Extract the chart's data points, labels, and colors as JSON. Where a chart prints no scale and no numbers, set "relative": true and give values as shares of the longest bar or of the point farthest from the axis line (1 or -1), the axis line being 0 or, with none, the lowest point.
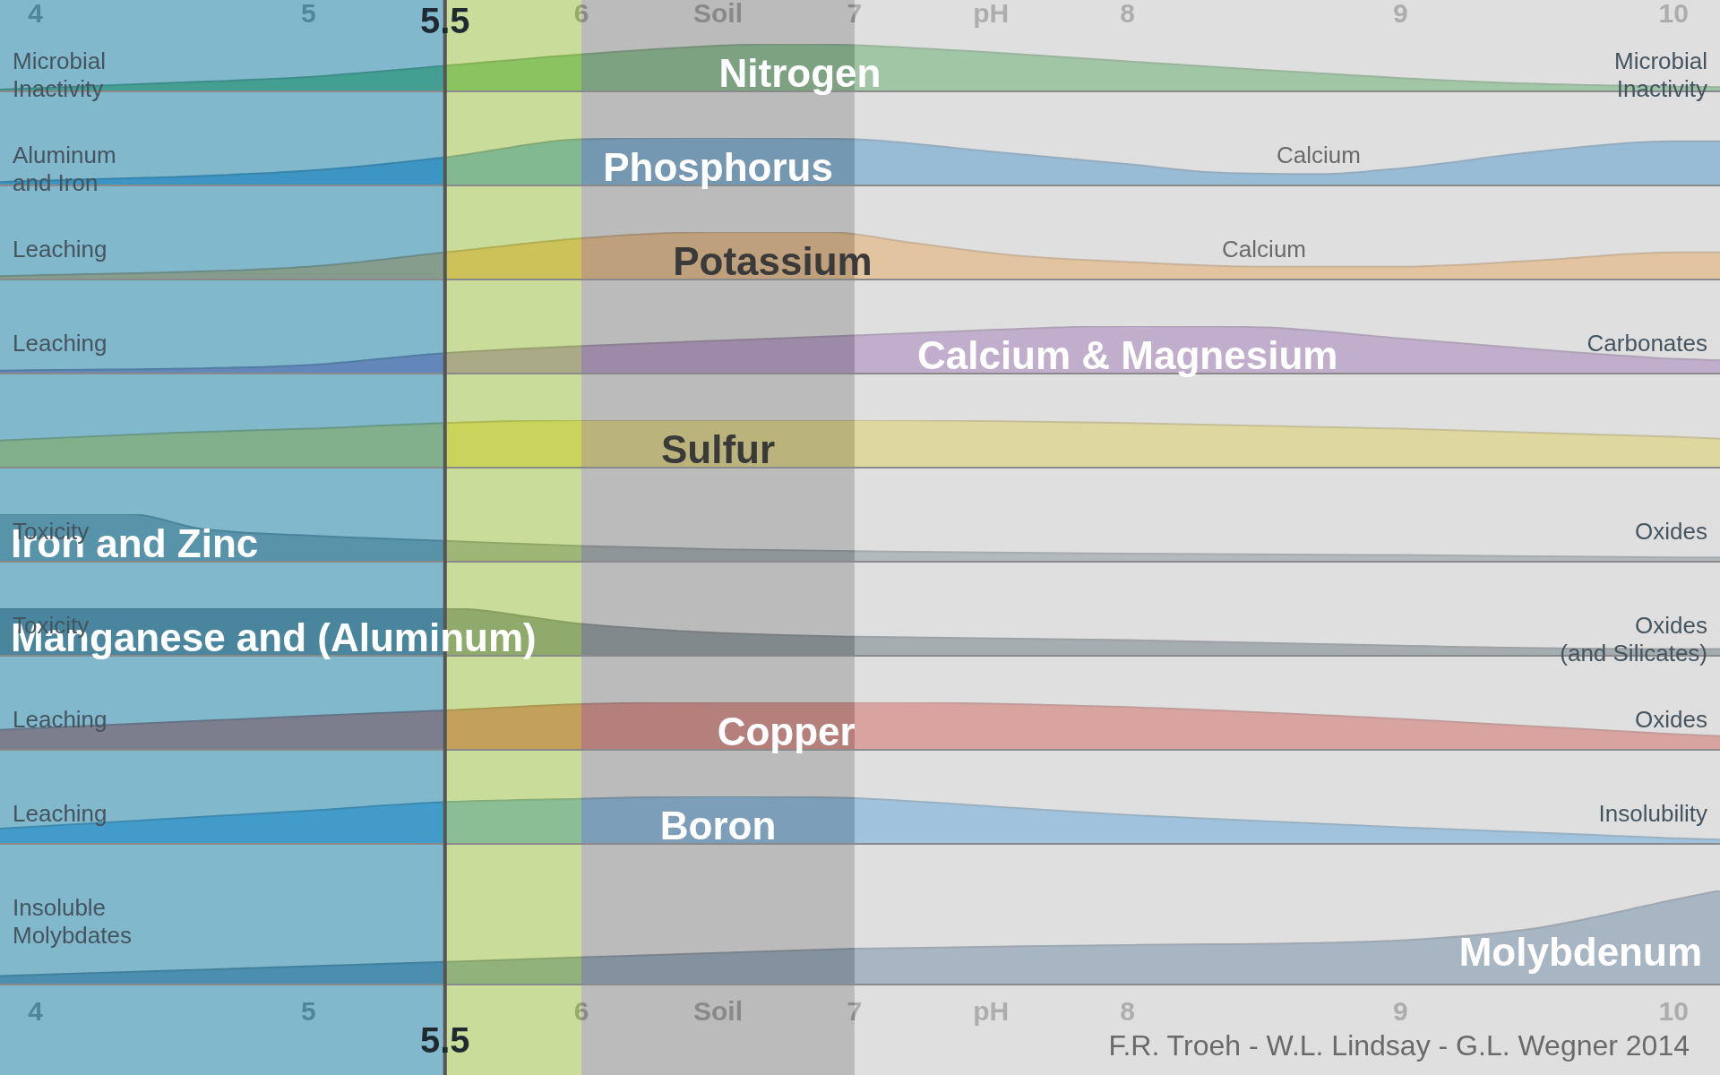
{
  "chart_data": [
    {
      "type": "area",
      "title": "Nitrogen",
      "relative": true,
      "color": "#3d9a4a",
      "x": [
        3.87,
        4.5,
        5,
        5.5,
        6,
        6.5,
        6.8,
        7,
        7.5,
        8,
        8.5,
        9,
        9.5,
        10,
        10.17
      ],
      "values": [
        0.04,
        0.18,
        0.3,
        0.54,
        0.78,
        0.96,
        1,
        0.97,
        0.82,
        0.63,
        0.45,
        0.28,
        0.16,
        0.1,
        0.09
      ],
      "xlim": [
        3.87,
        10.17
      ],
      "x2lim": [
        3.87,
        10.17
      ],
      "x2ticks": [
        4,
        5,
        6,
        {
          "value": 6.5,
          "label": "Soil"
        },
        7,
        {
          "value": 7.5,
          "label": "pH"
        },
        8,
        9,
        10
      ],
      "annotations": [
        "Microbial\nInactivity",
        "Microbial\nInactivity"
      ],
      "bands": [
        {
          "axis": "x",
          "from": 3.87,
          "to": 5.5,
          "color": "#4aa3c4"
        },
        {
          "axis": "x",
          "from": 5.5,
          "to": 6,
          "color": "#bfe070"
        },
        {
          "axis": "x",
          "from": 6,
          "to": 7,
          "color": "#a8a8a8"
        },
        {
          "axis": "x",
          "from": 7,
          "to": 10.17,
          "color": "#e4e4e4"
        }
      ],
      "ref_lines": [
        {
          "axis": "x",
          "value": 5.5,
          "label": "5.5",
          "color": "#555555"
        }
      ]
    },
    {
      "type": "area",
      "title": "Phosphorus",
      "relative": true,
      "color": "#2a7fc0",
      "x": [
        3.87,
        5,
        5.5,
        6,
        6.5,
        7,
        7.5,
        8,
        8.3,
        8.7,
        9,
        9.5,
        10,
        10.17
      ],
      "values": [
        0.07,
        0.31,
        0.59,
        0.97,
        1,
        0.97,
        0.71,
        0.45,
        0.28,
        0.24,
        0.36,
        0.71,
        0.93,
        0.93
      ],
      "xlim": [
        3.87,
        10.17
      ],
      "annotations": [
        "Aluminum\nand Iron",
        "Calcium"
      ],
      "bands": [
        {
          "axis": "x",
          "from": 3.87,
          "to": 5.5,
          "color": "#4aa3c4"
        },
        {
          "axis": "x",
          "from": 5.5,
          "to": 6,
          "color": "#bfe070"
        },
        {
          "axis": "x",
          "from": 6,
          "to": 7,
          "color": "#a8a8a8"
        },
        {
          "axis": "x",
          "from": 7,
          "to": 10.17,
          "color": "#e4e4e4"
        }
      ],
      "ref_lines": [
        {
          "axis": "x",
          "value": 5.5,
          "color": "#555555"
        }
      ]
    },
    {
      "type": "area",
      "title": "Potassium",
      "relative": true,
      "color": "#e0953a",
      "x": [
        3.87,
        5,
        5.5,
        6,
        6.5,
        6.9,
        7.2,
        7.6,
        8,
        8.5,
        9,
        9.5,
        10,
        10.17
      ],
      "values": [
        0.07,
        0.27,
        0.57,
        0.87,
        1,
        1,
        0.78,
        0.5,
        0.37,
        0.27,
        0.27,
        0.4,
        0.57,
        0.57
      ],
      "xlim": [
        3.87,
        10.17
      ],
      "annotations": [
        "Leaching",
        "Calcium"
      ],
      "bands": [
        {
          "axis": "x",
          "from": 3.87,
          "to": 5.5,
          "color": "#4aa3c4"
        },
        {
          "axis": "x",
          "from": 5.5,
          "to": 6,
          "color": "#bfe070"
        },
        {
          "axis": "x",
          "from": 6,
          "to": 7,
          "color": "#a8a8a8"
        },
        {
          "axis": "x",
          "from": 7,
          "to": 10.17,
          "color": "#e4e4e4"
        }
      ],
      "ref_lines": [
        {
          "axis": "x",
          "value": 5.5,
          "color": "#555555"
        }
      ]
    },
    {
      "type": "area",
      "title": "Calcium & Magnesium",
      "relative": true,
      "color": "#8a5ea8",
      "x": [
        3.87,
        5,
        5.5,
        6,
        7,
        7.5,
        8,
        8.5,
        9,
        9.5,
        10,
        10.17
      ],
      "values": [
        0.06,
        0.18,
        0.43,
        0.58,
        0.8,
        0.92,
        1,
        0.97,
        0.74,
        0.51,
        0.31,
        0.28
      ],
      "xlim": [
        3.87,
        10.17
      ],
      "annotations": [
        "Leaching",
        "Carbonates"
      ],
      "bands": [
        {
          "axis": "x",
          "from": 3.87,
          "to": 5.5,
          "color": "#4aa3c4"
        },
        {
          "axis": "x",
          "from": 5.5,
          "to": 6,
          "color": "#bfe070"
        },
        {
          "axis": "x",
          "from": 6,
          "to": 7,
          "color": "#a8a8a8"
        },
        {
          "axis": "x",
          "from": 7,
          "to": 10.17,
          "color": "#e4e4e4"
        }
      ],
      "ref_lines": [
        {
          "axis": "x",
          "value": 5.5,
          "color": "#555555"
        }
      ]
    },
    {
      "type": "area",
      "title": "Sulfur",
      "relative": true,
      "color": "#d6c23a",
      "x": [
        3.87,
        4.5,
        5,
        5.5,
        6,
        7,
        8,
        9,
        10,
        10.17
      ],
      "values": [
        0.57,
        0.73,
        0.82,
        0.94,
        1,
        1,
        0.94,
        0.82,
        0.65,
        0.61
      ],
      "xlim": [
        3.87,
        10.17
      ],
      "bands": [
        {
          "axis": "x",
          "from": 3.87,
          "to": 5.5,
          "color": "#4aa3c4"
        },
        {
          "axis": "x",
          "from": 5.5,
          "to": 6,
          "color": "#bfe070"
        },
        {
          "axis": "x",
          "from": 6,
          "to": 7,
          "color": "#a8a8a8"
        },
        {
          "axis": "x",
          "from": 7,
          "to": 10.17,
          "color": "#e4e4e4"
        }
      ],
      "ref_lines": [
        {
          "axis": "x",
          "value": 5.5,
          "color": "#555555"
        }
      ]
    },
    {
      "type": "area",
      "title": "Iron and Zinc",
      "relative": true,
      "color": "#6d7a80",
      "x": [
        3.87,
        4.35,
        4.6,
        5,
        5.5,
        6,
        6.5,
        7,
        8,
        9,
        10,
        10.17
      ],
      "values": [
        1,
        1,
        0.7,
        0.55,
        0.44,
        0.33,
        0.26,
        0.22,
        0.17,
        0.14,
        0.09,
        0.09
      ],
      "xlim": [
        3.87,
        10.17
      ],
      "annotations": [
        "Toxicity",
        "Oxides"
      ],
      "bands": [
        {
          "axis": "x",
          "from": 3.87,
          "to": 5.5,
          "color": "#4aa3c4"
        },
        {
          "axis": "x",
          "from": 5.5,
          "to": 6,
          "color": "#bfe070"
        },
        {
          "axis": "x",
          "from": 6,
          "to": 7,
          "color": "#a8a8a8"
        },
        {
          "axis": "x",
          "from": 7,
          "to": 10.17,
          "color": "#e4e4e4"
        }
      ],
      "ref_lines": [
        {
          "axis": "x",
          "value": 5.5,
          "color": "#555555"
        }
      ]
    },
    {
      "type": "area",
      "title": "Manganese and (Aluminum)",
      "relative": true,
      "color": "#4a5a64",
      "x": [
        3.87,
        5.5,
        6,
        6.5,
        7,
        8,
        9,
        10,
        10.17
      ],
      "values": [
        1,
        1,
        0.67,
        0.48,
        0.4,
        0.33,
        0.21,
        0.14,
        0.14
      ],
      "xlim": [
        3.87,
        10.17
      ],
      "annotations": [
        "Toxicity",
        "Oxides\n(and Silicates)"
      ],
      "bands": [
        {
          "axis": "x",
          "from": 3.87,
          "to": 5.5,
          "color": "#4aa3c4"
        },
        {
          "axis": "x",
          "from": 5.5,
          "to": 6,
          "color": "#bfe070"
        },
        {
          "axis": "x",
          "from": 6,
          "to": 7,
          "color": "#a8a8a8"
        },
        {
          "axis": "x",
          "from": 7,
          "to": 10.17,
          "color": "#e4e4e4"
        }
      ],
      "ref_lines": [
        {
          "axis": "x",
          "value": 5.5,
          "color": "#555555"
        }
      ]
    },
    {
      "type": "area",
      "title": "Copper",
      "relative": true,
      "color": "#c8453a",
      "x": [
        3.87,
        5,
        5.5,
        6,
        6.5,
        7,
        8,
        9,
        10,
        10.17
      ],
      "values": [
        0.42,
        0.71,
        0.83,
        0.96,
        1,
        1,
        0.9,
        0.65,
        0.33,
        0.29
      ],
      "xlim": [
        3.87,
        10.17
      ],
      "annotations": [
        "Leaching",
        "Oxides"
      ],
      "bands": [
        {
          "axis": "x",
          "from": 3.87,
          "to": 5.5,
          "color": "#4aa3c4"
        },
        {
          "axis": "x",
          "from": 5.5,
          "to": 6,
          "color": "#bfe070"
        },
        {
          "axis": "x",
          "from": 6,
          "to": 7,
          "color": "#a8a8a8"
        },
        {
          "axis": "x",
          "from": 7,
          "to": 10.17,
          "color": "#e4e4e4"
        }
      ],
      "ref_lines": [
        {
          "axis": "x",
          "value": 5.5,
          "color": "#555555"
        }
      ]
    },
    {
      "type": "area",
      "title": "Boron",
      "relative": true,
      "color": "#3a8fd0",
      "x": [
        3.87,
        5,
        5.5,
        6,
        6.5,
        7,
        7.5,
        8,
        9,
        10,
        10.17
      ],
      "values": [
        0.32,
        0.7,
        0.88,
        0.95,
        1,
        0.96,
        0.79,
        0.61,
        0.35,
        0.12,
        0.09
      ],
      "xlim": [
        3.87,
        10.17
      ],
      "annotations": [
        "Leaching",
        "Insolubility"
      ],
      "bands": [
        {
          "axis": "x",
          "from": 3.87,
          "to": 5.5,
          "color": "#4aa3c4"
        },
        {
          "axis": "x",
          "from": 5.5,
          "to": 6,
          "color": "#bfe070"
        },
        {
          "axis": "x",
          "from": 6,
          "to": 7,
          "color": "#a8a8a8"
        },
        {
          "axis": "x",
          "from": 7,
          "to": 10.17,
          "color": "#e4e4e4"
        }
      ],
      "ref_lines": [
        {
          "axis": "x",
          "value": 5.5,
          "color": "#555555"
        }
      ]
    },
    {
      "type": "area",
      "title": "Molybdenum",
      "relative": true,
      "color": "#4f6f8f",
      "x": [
        3.87,
        5.5,
        7,
        8,
        9,
        9.5,
        10,
        10.17
      ],
      "values": [
        0.09,
        0.24,
        0.38,
        0.42,
        0.47,
        0.6,
        0.9,
        1
      ],
      "xlim": [
        3.87,
        10.17
      ],
      "xticks": [
        4,
        5,
        6,
        {
          "value": 6.5,
          "label": "Soil"
        },
        7,
        {
          "value": 7.5,
          "label": "pH"
        },
        8,
        9,
        10
      ],
      "annotations": [
        "Insoluble\nMolybdates",
        "F.R. Troeh - W.L. Lindsay - G.L. Wegner 2014"
      ],
      "bands": [
        {
          "axis": "x",
          "from": 3.87,
          "to": 5.5,
          "color": "#4aa3c4"
        },
        {
          "axis": "x",
          "from": 5.5,
          "to": 6,
          "color": "#bfe070"
        },
        {
          "axis": "x",
          "from": 6,
          "to": 7,
          "color": "#a8a8a8"
        },
        {
          "axis": "x",
          "from": 7,
          "to": 10.17,
          "color": "#e4e4e4"
        }
      ],
      "ref_lines": [
        {
          "axis": "x",
          "value": 5.5,
          "label": "5.5",
          "color": "#555555"
        }
      ]
    }
  ]
}
